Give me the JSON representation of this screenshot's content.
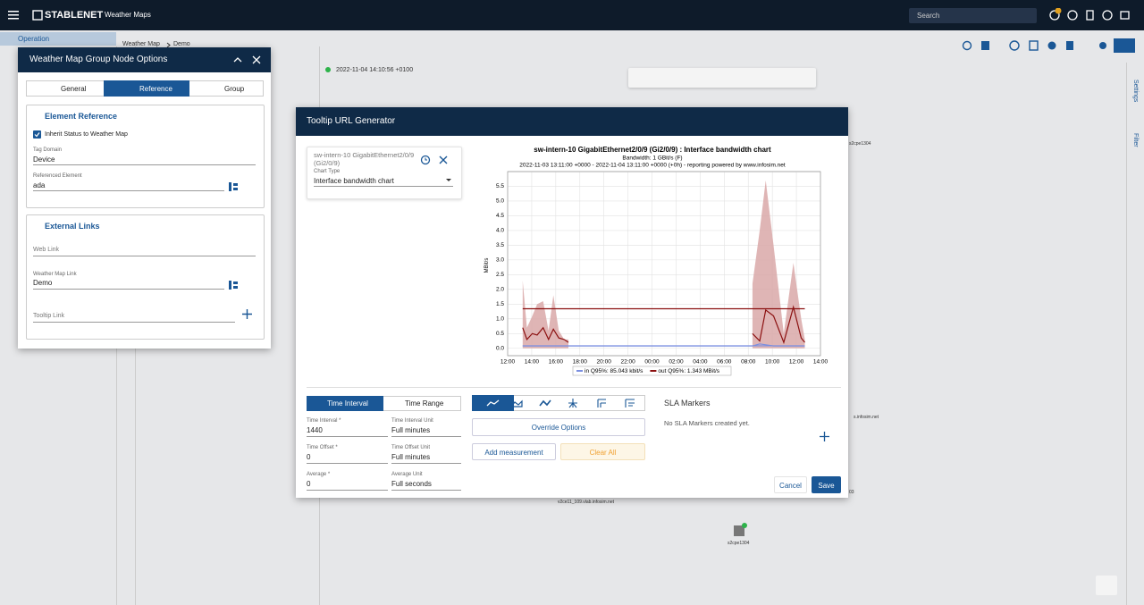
{
  "top_bar": {
    "brand": "STABLENET",
    "app": "Weather Maps",
    "search": "Search"
  },
  "nav": {
    "section": "Operation",
    "breadcrumb": [
      "Weather Map",
      "Demo"
    ],
    "timestamp": "2022-11-04 14:10:56 +0100"
  },
  "side_panel": [
    "Settings",
    "Filter"
  ],
  "map_labels": [
    "s2cpe1304",
    "s.infosim.net",
    "03",
    "v2ce11_109.vlab.infosim.net",
    "s2cpe1304"
  ],
  "group_node_dialog": {
    "title": "Weather Map Group Node Options",
    "tabs": [
      "General",
      "Reference",
      "Group"
    ],
    "element_reference": {
      "title": "Element Reference",
      "inherit": "Inherit Status to Weather Map",
      "tag_domain_label": "Tag Domain",
      "tag_domain": "Device",
      "referenced_label": "Referenced Element",
      "referenced": "ada"
    },
    "external_links": {
      "title": "External Links",
      "web_link": "Web Link",
      "map_link_label": "Weather Map Link",
      "map_link": "Demo",
      "tooltip_link": "Tooltip Link"
    }
  },
  "tooltip_dialog": {
    "title": "Tooltip URL Generator",
    "element": "sw-intern-10 GigabitEthernet2/0/9 (Gi2/0/9)",
    "chart_type_label": "Chart Type",
    "chart_type": "Interface bandwidth chart",
    "chart_data": {
      "type": "line",
      "title": "sw-intern-10 GigabitEthernet2/0/9 (Gi2/0/9) : Interface bandwidth chart",
      "subtitle": [
        "Bandwidth: 1 GBit/s (F)",
        "2022-11-03 13:11:00 +0000 - 2022-11-04 13:11:00 +0000 (+0h) - reporting powered by www.infosim.net"
      ],
      "y_label": "MBit/s",
      "x": [
        1.25,
        1.6,
        2.05,
        2.45,
        2.95,
        3.4,
        3.8,
        4.25,
        4.7,
        5.05,
        9,
        13,
        17,
        20.35,
        20.95,
        21.45,
        22.1,
        22.95,
        23.75,
        24.4,
        24.7
      ],
      "series": [
        {
          "name": "in Q95%: 85.043 kbit/s",
          "color": "#7b8fe0",
          "q95": 0.085043,
          "values": [
            0.08,
            0.08,
            0.08,
            0.08,
            0.08,
            0.08,
            0.08,
            0.08,
            0.08,
            0.08,
            0.08,
            0.08,
            0.08,
            0.08,
            0.15,
            0.12,
            0.08,
            0.08,
            0.08,
            0.08,
            0.08
          ]
        },
        {
          "name": "out Q95%: 1.343 MBit/s",
          "color": "#8b1010",
          "band_color": "#d9a8a8",
          "q95": 1.343,
          "values": [
            0.7,
            0.3,
            0.5,
            0.45,
            0.7,
            0.3,
            0.65,
            0.35,
            0.3,
            0.2,
            null,
            null,
            null,
            0.5,
            0.25,
            1.3,
            1.1,
            0.2,
            1.4,
            0.35,
            0.2
          ],
          "max_values": [
            2.3,
            0.7,
            1.1,
            1.5,
            1.6,
            0.6,
            1.8,
            0.6,
            0.3,
            0.3,
            null,
            null,
            null,
            2.2,
            4.0,
            5.7,
            3.5,
            0.5,
            2.9,
            1.0,
            0.3
          ]
        }
      ],
      "xlim": [
        0,
        26
      ],
      "xticks": [
        {
          "value": 0,
          "label": "12:00"
        },
        {
          "value": 2,
          "label": "14:00"
        },
        {
          "value": 4,
          "label": "16:00"
        },
        {
          "value": 6,
          "label": "18:00"
        },
        {
          "value": 8,
          "label": "20:00"
        },
        {
          "value": 10,
          "label": "22:00"
        },
        {
          "value": 12,
          "label": "00:00"
        },
        {
          "value": 14,
          "label": "02:00"
        },
        {
          "value": 16,
          "label": "04:00"
        },
        {
          "value": 18,
          "label": "06:00"
        },
        {
          "value": 20,
          "label": "08:00"
        },
        {
          "value": 22,
          "label": "10:00"
        },
        {
          "value": 24,
          "label": "12:00"
        },
        {
          "value": 26,
          "label": "14:00"
        }
      ],
      "ylim": [
        -0.25,
        6.0
      ],
      "yticks": [
        {
          "value": 0,
          "label": "0.0"
        },
        {
          "value": 0.5,
          "label": "0.5"
        },
        {
          "value": 1,
          "label": "1.0"
        },
        {
          "value": 1.5,
          "label": "1.5"
        },
        {
          "value": 2,
          "label": "2.0"
        },
        {
          "value": 2.5,
          "label": "2.5"
        },
        {
          "value": 3,
          "label": "3.0"
        },
        {
          "value": 3.5,
          "label": "3.5"
        },
        {
          "value": 4,
          "label": "4.0"
        },
        {
          "value": 4.5,
          "label": "4.5"
        },
        {
          "value": 5,
          "label": "5.0"
        },
        {
          "value": 5.5,
          "label": "5.5"
        }
      ],
      "grid": true
    },
    "mode_tabs": [
      "Time Interval",
      "Time Range"
    ],
    "fields": [
      {
        "label": "Time Interval *",
        "value": "1440",
        "unit_label": "Time Interval Unit",
        "unit": "Full minutes"
      },
      {
        "label": "Time Offset *",
        "value": "0",
        "unit_label": "Time Offset Unit",
        "unit": "Full minutes"
      },
      {
        "label": "Average *",
        "value": "0",
        "unit_label": "Average Unit",
        "unit": "Full seconds"
      }
    ],
    "buttons": {
      "override": "Override Options",
      "add": "Add measurement",
      "clear": "Clear All"
    },
    "sla": {
      "title": "SLA Markers",
      "empty": "No SLA Markers created yet."
    },
    "cancel": "Cancel",
    "save": "Save"
  }
}
